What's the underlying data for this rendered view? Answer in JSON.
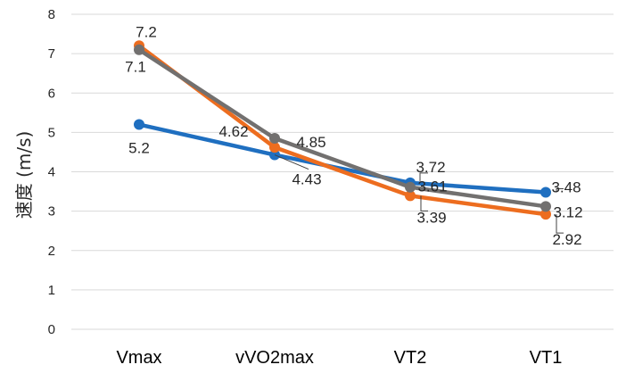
{
  "chart_data": {
    "type": "line",
    "title": "",
    "xlabel": "",
    "ylabel": "速度 (m/s)",
    "ylim": [
      0,
      8
    ],
    "yticks": [
      "0",
      "1",
      "2",
      "3",
      "4",
      "5",
      "6",
      "7",
      "8"
    ],
    "categories": [
      "Vmax",
      "vVO2max",
      "VT2",
      "VT1"
    ],
    "grid": true,
    "legend": "none",
    "series": [
      {
        "color": "#1f6fc0",
        "values": [
          5.2,
          4.43,
          3.72,
          3.48
        ],
        "labels": [
          "5.2",
          "4.43",
          "3.72",
          "3.48"
        ]
      },
      {
        "color": "#ed6d1f",
        "values": [
          7.2,
          4.62,
          3.39,
          2.92
        ],
        "labels": [
          "7.2",
          "4.62",
          "3.39",
          "2.92"
        ]
      },
      {
        "color": "#72706f",
        "values": [
          7.1,
          4.85,
          3.61,
          3.12
        ],
        "labels": [
          "7.1",
          "4.85",
          "3.61",
          "3.12"
        ]
      }
    ]
  }
}
